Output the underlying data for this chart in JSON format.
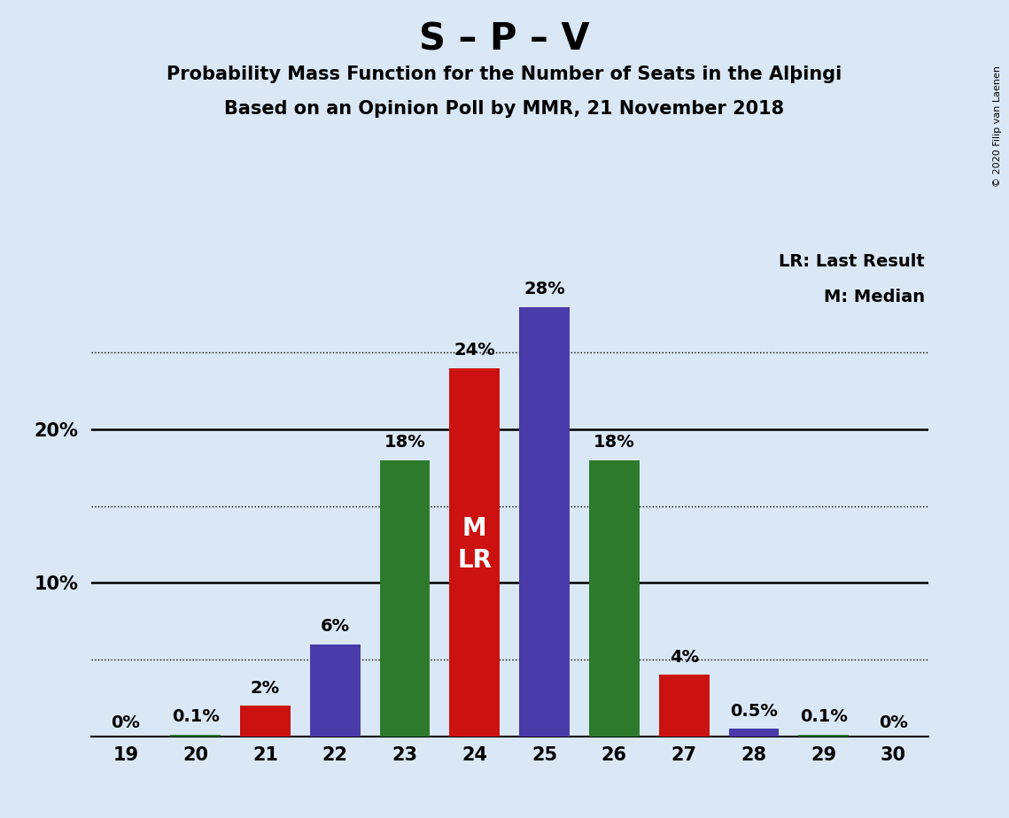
{
  "title": "S – P – V",
  "subtitle1": "Probability Mass Function for the Number of Seats in the Alþingi",
  "subtitle2": "Based on an Opinion Poll by MMR, 21 November 2018",
  "copyright": "© 2020 Filip van Laenen",
  "seats": [
    19,
    20,
    21,
    22,
    23,
    24,
    25,
    26,
    27,
    28,
    29,
    30
  ],
  "probabilities": [
    0.0,
    0.1,
    2.0,
    6.0,
    18.0,
    24.0,
    28.0,
    18.0,
    4.0,
    0.5,
    0.1,
    0.0
  ],
  "labels": [
    "0%",
    "0.1%",
    "2%",
    "6%",
    "18%",
    "24%",
    "28%",
    "18%",
    "4%",
    "0.5%",
    "0.1%",
    "0%"
  ],
  "bar_colors": [
    "#2d7a2d",
    "#2d7a2d",
    "#cc1111",
    "#4a3aaa",
    "#2d7a2d",
    "#cc1111",
    "#4a3aaa",
    "#2d7a2d",
    "#cc1111",
    "#4a3aaa",
    "#2d7a2d",
    "#2d7a2d"
  ],
  "median_seat": 24,
  "lr_seat": 24,
  "legend_lr": "LR: Last Result",
  "legend_m": "M: Median",
  "background_color": "#dae8f5",
  "dotted_grid_lines": [
    5,
    15,
    25
  ],
  "solid_grid_lines": [
    10,
    20
  ],
  "ylim": [
    0,
    32
  ],
  "title_fontsize": 30,
  "subtitle_fontsize": 15,
  "label_fontsize": 14,
  "tick_fontsize": 15
}
